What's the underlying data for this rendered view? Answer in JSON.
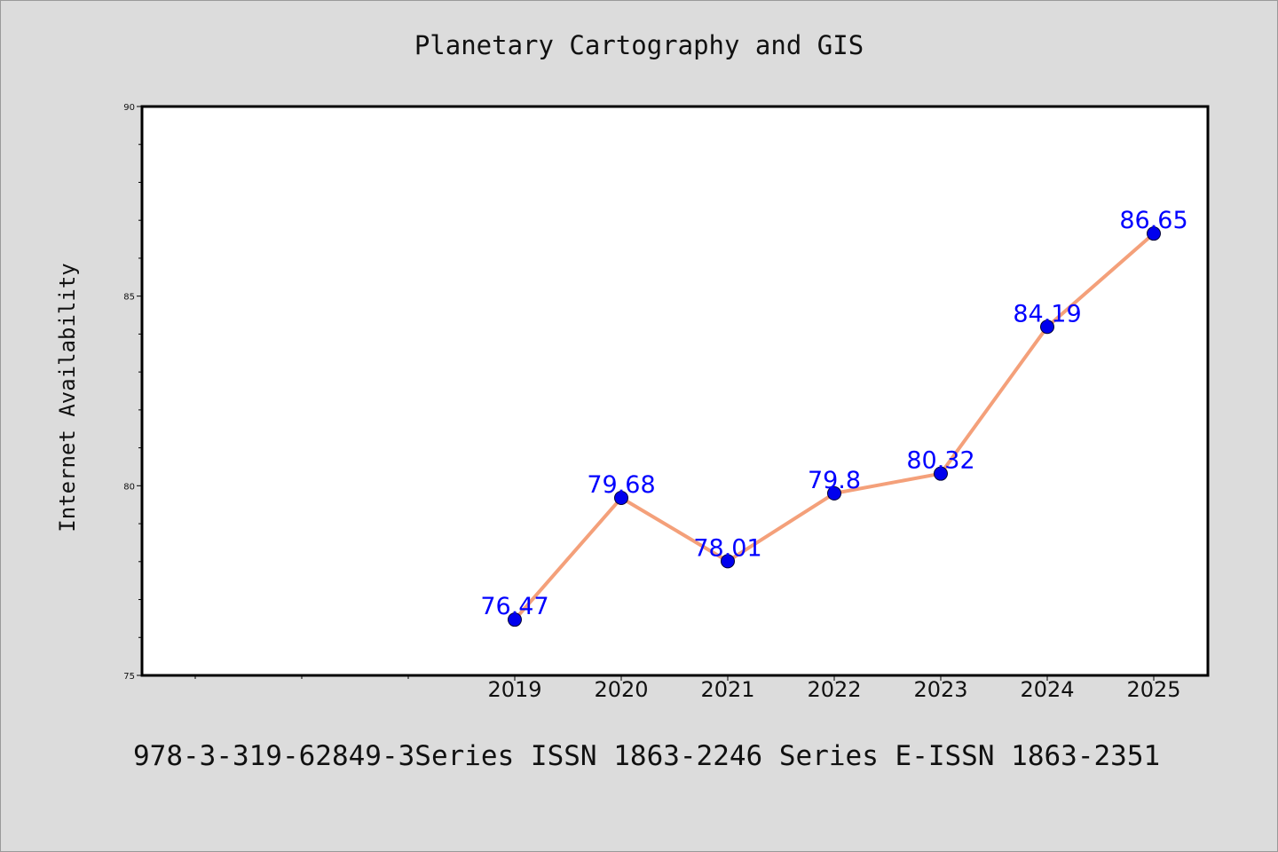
{
  "chart_data": {
    "type": "line",
    "title": "Planetary Cartography and GIS",
    "xlabel": "",
    "ylabel": "Internet Availability",
    "footer": "978-3-319-62849-3Series ISSN 1863-2246 Series E-ISSN 1863-2351",
    "categories": [
      "2019",
      "2020",
      "2021",
      "2022",
      "2023",
      "2024",
      "2025"
    ],
    "series": [
      {
        "values": [
          76.47,
          79.68,
          78.01,
          79.8,
          80.32,
          84.19,
          86.65
        ]
      }
    ],
    "data_labels": [
      "76.47",
      "79.68",
      "78.01",
      "79.8",
      "80.32",
      "84.19",
      "86.65"
    ],
    "yticks": [
      "75",
      "80",
      "85",
      "90"
    ],
    "ylim": [
      75,
      90
    ],
    "grid": false,
    "colors": {
      "line": "#f4a07a",
      "marker": "#0000ee",
      "label": "#0000ff",
      "background": "#dcdcdc",
      "plot_background": "#ffffff"
    }
  }
}
